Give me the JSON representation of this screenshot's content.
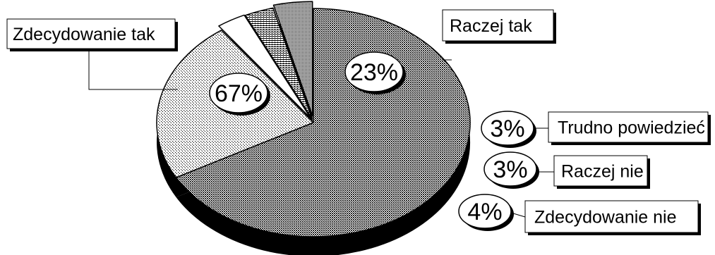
{
  "chart_data": {
    "type": "pie",
    "title": "",
    "style": "3d-exploded",
    "legend": "none",
    "slices": [
      {
        "label": "Zdecydowanie tak",
        "value": 67,
        "value_label": "67%",
        "pattern": "dense-crosshatch"
      },
      {
        "label": "Raczej tak",
        "value": 23,
        "value_label": "23%",
        "pattern": "light-crosshatch"
      },
      {
        "label": "Trudno powiedzieć",
        "value": 3,
        "value_label": "3%",
        "pattern": "solid-white"
      },
      {
        "label": "Raczej nie",
        "value": 3,
        "value_label": "3%",
        "pattern": "horizontal-lines"
      },
      {
        "label": "Zdecydowanie nie",
        "value": 4,
        "value_label": "4%",
        "pattern": "fine-dots"
      }
    ],
    "colors": {
      "background": "#ffffff",
      "outline": "#000000",
      "depth": "#000000"
    }
  }
}
